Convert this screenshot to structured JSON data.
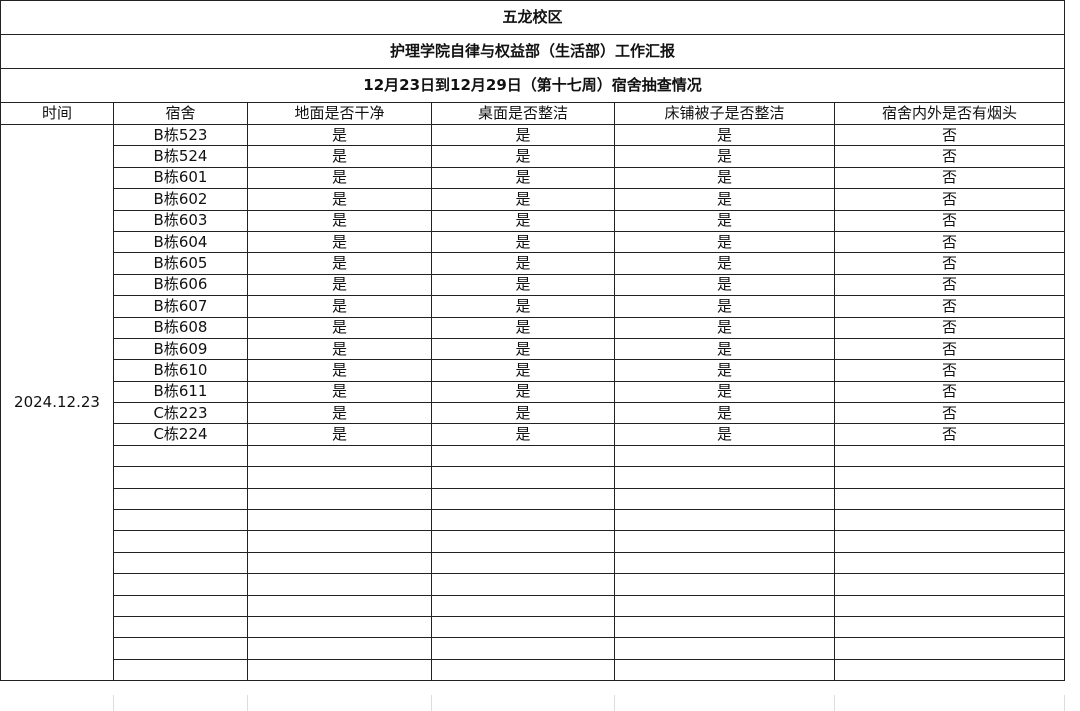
{
  "title": "五龙校区",
  "subtitle": "护理学院自律与权益部（生活部）工作汇报",
  "period": "12月23日到12月29日（第十七周）宿舍抽查情况",
  "columns": [
    "时间",
    "宿舍",
    "地面是否干净",
    "桌面是否整洁",
    "床铺被子是否整洁",
    "宿舍内外是否有烟头"
  ],
  "date": "2024.12.23",
  "rows": [
    [
      "B栋523",
      "是",
      "是",
      "是",
      "否"
    ],
    [
      "B栋524",
      "是",
      "是",
      "是",
      "否"
    ],
    [
      "B栋601",
      "是",
      "是",
      "是",
      "否"
    ],
    [
      "B栋602",
      "是",
      "是",
      "是",
      "否"
    ],
    [
      "B栋603",
      "是",
      "是",
      "是",
      "否"
    ],
    [
      "B栋604",
      "是",
      "是",
      "是",
      "否"
    ],
    [
      "B栋605",
      "是",
      "是",
      "是",
      "否"
    ],
    [
      "B栋606",
      "是",
      "是",
      "是",
      "否"
    ],
    [
      "B栋607",
      "是",
      "是",
      "是",
      "否"
    ],
    [
      "B栋608",
      "是",
      "是",
      "是",
      "否"
    ],
    [
      "B栋609",
      "是",
      "是",
      "是",
      "否"
    ],
    [
      "B栋610",
      "是",
      "是",
      "是",
      "否"
    ],
    [
      "B栋611",
      "是",
      "是",
      "是",
      "否"
    ],
    [
      "C栋223",
      "是",
      "是",
      "是",
      "否"
    ],
    [
      "C栋224",
      "是",
      "是",
      "是",
      "否"
    ]
  ]
}
